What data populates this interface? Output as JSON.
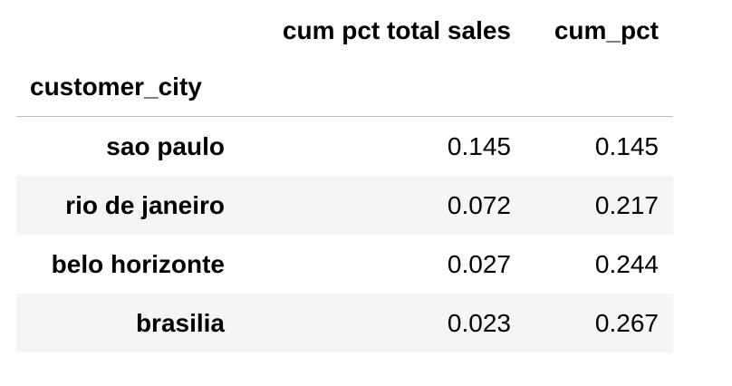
{
  "table": {
    "columns": [
      "cum pct total sales",
      "cum_pct"
    ],
    "index_name": "customer_city",
    "rows": [
      {
        "city": "sao paulo",
        "cum_pct_total_sales": "0.145",
        "cum_pct": "0.145"
      },
      {
        "city": "rio de janeiro",
        "cum_pct_total_sales": "0.072",
        "cum_pct": "0.217"
      },
      {
        "city": "belo horizonte",
        "cum_pct_total_sales": "0.027",
        "cum_pct": "0.244"
      },
      {
        "city": "brasilia",
        "cum_pct_total_sales": "0.023",
        "cum_pct": "0.267"
      }
    ]
  }
}
